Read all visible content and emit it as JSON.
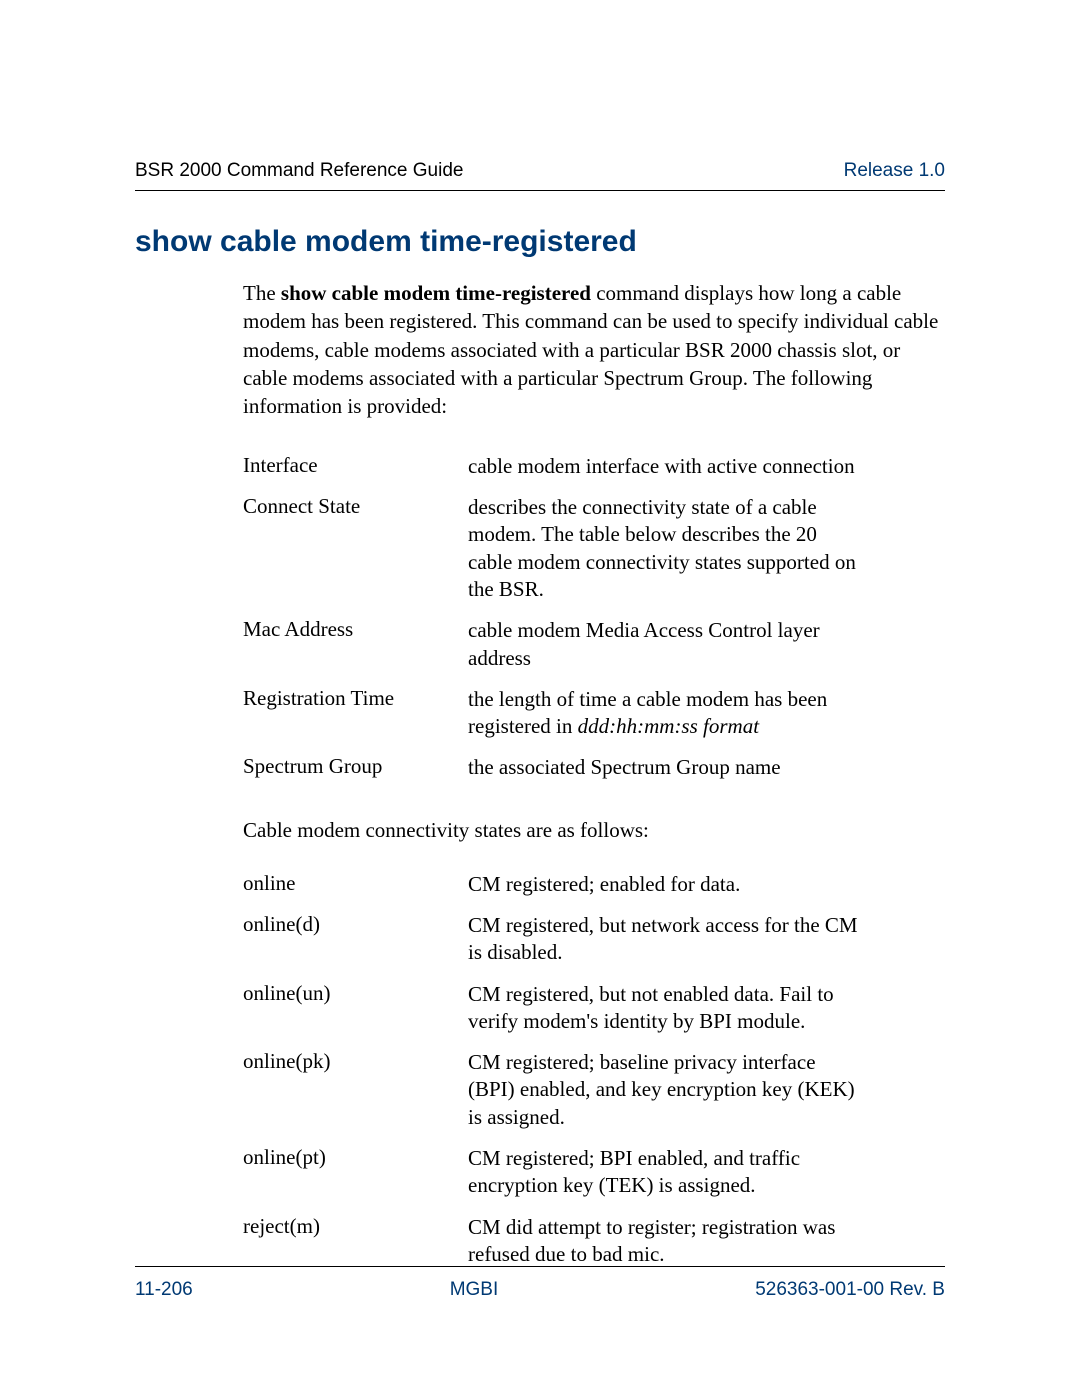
{
  "header": {
    "left": "BSR 2000 Command Reference Guide",
    "right": "Release 1.0"
  },
  "title": "show cable modem time-registered",
  "intro": {
    "pre": "The ",
    "bold": "show cable modem time-registered",
    "post": " command displays how long a cable modem has been registered. This command can be used to specify individual cable modems, cable modems associated with a particular BSR 2000 chassis slot, or cable modems associated with a particular Spectrum Group. The following information is provided:"
  },
  "fields": [
    {
      "term": "Interface",
      "desc": "cable modem interface with active connection"
    },
    {
      "term": "Connect State",
      "desc": "describes the connectivity state of a cable modem. The table below describes the 20 cable modem connectivity states supported on the BSR."
    },
    {
      "term": "Mac Address",
      "desc": "cable modem Media Access Control layer address"
    },
    {
      "term": "Registration Time",
      "desc_pre": "the length of time a cable modem has been registered in ",
      "desc_italic": "ddd:hh:mm:ss format"
    },
    {
      "term": "Spectrum Group",
      "desc": "the associated Spectrum Group name"
    }
  ],
  "midline": "Cable modem connectivity states are as follows:",
  "states": [
    {
      "term": "online",
      "desc": "CM registered; enabled for data."
    },
    {
      "term": "online(d)",
      "desc": "CM registered, but network access for the CM is disabled."
    },
    {
      "term": "online(un)",
      "desc": "CM registered, but not enabled data. Fail to verify modem's identity by BPI module."
    },
    {
      "term": "online(pk)",
      "desc": "CM registered; baseline privacy interface (BPI) enabled, and key encryption key (KEK) is assigned."
    },
    {
      "term": "online(pt)",
      "desc": "CM registered; BPI enabled, and traffic encryption key (TEK) is assigned."
    },
    {
      "term": "reject(m)",
      "desc": "CM did attempt to register; registration was refused due to bad mic."
    }
  ],
  "footer": {
    "left": "11-206",
    "center": "MGBI",
    "right": "526363-001-00 Rev. B"
  },
  "colors": {
    "accent": "#003973",
    "text": "#000000",
    "background": "#ffffff"
  },
  "typography": {
    "body_family": "Times New Roman",
    "heading_family": "Arial",
    "title_size_pt": 22,
    "body_size_pt": 16,
    "header_size_pt": 14
  }
}
